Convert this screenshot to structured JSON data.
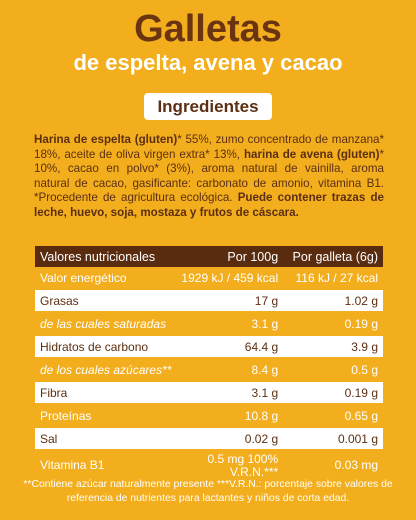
{
  "header": {
    "title": "Galletas",
    "subtitle": "de espelta, avena y cacao"
  },
  "ingredients": {
    "heading": "Ingredientes",
    "segments": [
      {
        "text": "Harina de espelta (gluten)",
        "bold": true
      },
      {
        "text": "* 55%, zumo concentrado de manzana* 18%, aceite de oliva virgen extra* 13%, ",
        "bold": false
      },
      {
        "text": "harina de avena (gluten)",
        "bold": true
      },
      {
        "text": "* 10%, cacao en polvo* (3%), aroma natural de vainilla, aroma natural de cacao, gasificante: carbonato de amonio, vitamina B1. *Procedente de agricultura ecológica. ",
        "bold": false
      },
      {
        "text": "Puede contener trazas de leche, huevo, soja, mostaza y frutos de cáscara.",
        "bold": true
      }
    ]
  },
  "table": {
    "header": [
      "Valores nutricionales",
      "Por 100g",
      "Por galleta (6g)"
    ],
    "rows": [
      [
        "Valor energético",
        "1929 kJ / 459 kcal",
        "116 kJ / 27 kcal"
      ],
      [
        "Grasas",
        "17 g",
        "1.02 g"
      ],
      [
        "de las cuales saturadas",
        "3.1 g",
        "0.19 g"
      ],
      [
        "Hidratos de carbono",
        "64.4 g",
        "3.9 g"
      ],
      [
        "de los cuales azúcares**",
        "8.4 g",
        "0.5 g"
      ],
      [
        "Fibra",
        "3.1 g",
        "0.19 g"
      ],
      [
        "Proteínas",
        "10.8 g",
        "0.65 g"
      ],
      [
        "Sal",
        "0.02 g",
        "0.001 g"
      ],
      [
        "Vitamina B1",
        "0.5 mg 100% V.R.N.***",
        "0.03 mg"
      ]
    ]
  },
  "footnote": "**Contiene azúcar naturalmente presente ***V.R.N.: porcentaje sobre valores de referencia de nutrientes para lactantes y niños de corta edad."
}
